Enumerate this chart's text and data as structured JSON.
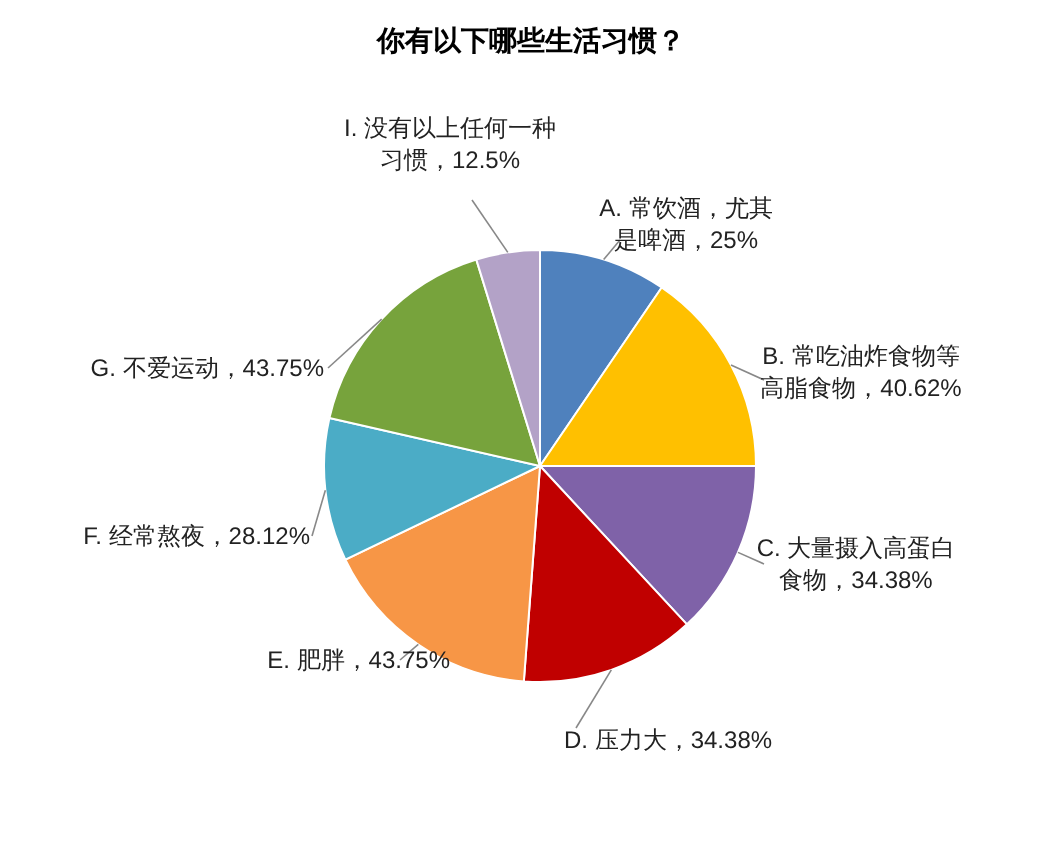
{
  "chart_data": {
    "type": "pie",
    "title": "你有以下哪些生活习惯？",
    "categories": [
      "A. 常饮酒，尤其是啤酒",
      "B. 常吃油炸食物等高脂食物",
      "C. 大量摄入高蛋白食物",
      "D. 压力大",
      "E. 肥胖",
      "F. 经常熬夜",
      "G. 不爱运动",
      "I. 没有以上任何一种习惯"
    ],
    "values": [
      25,
      40.62,
      34.38,
      34.38,
      43.75,
      28.12,
      43.75,
      12.5
    ],
    "value_labels": [
      "25%",
      "40.62%",
      "34.38%",
      "34.38%",
      "43.75%",
      "28.12%",
      "43.75%",
      "12.5%"
    ],
    "colors": [
      "#4f81bd",
      "#ffc000",
      "#7f62a8",
      "#c00000",
      "#f79646",
      "#4bacc6",
      "#77a33c",
      "#b3a2c7"
    ]
  }
}
